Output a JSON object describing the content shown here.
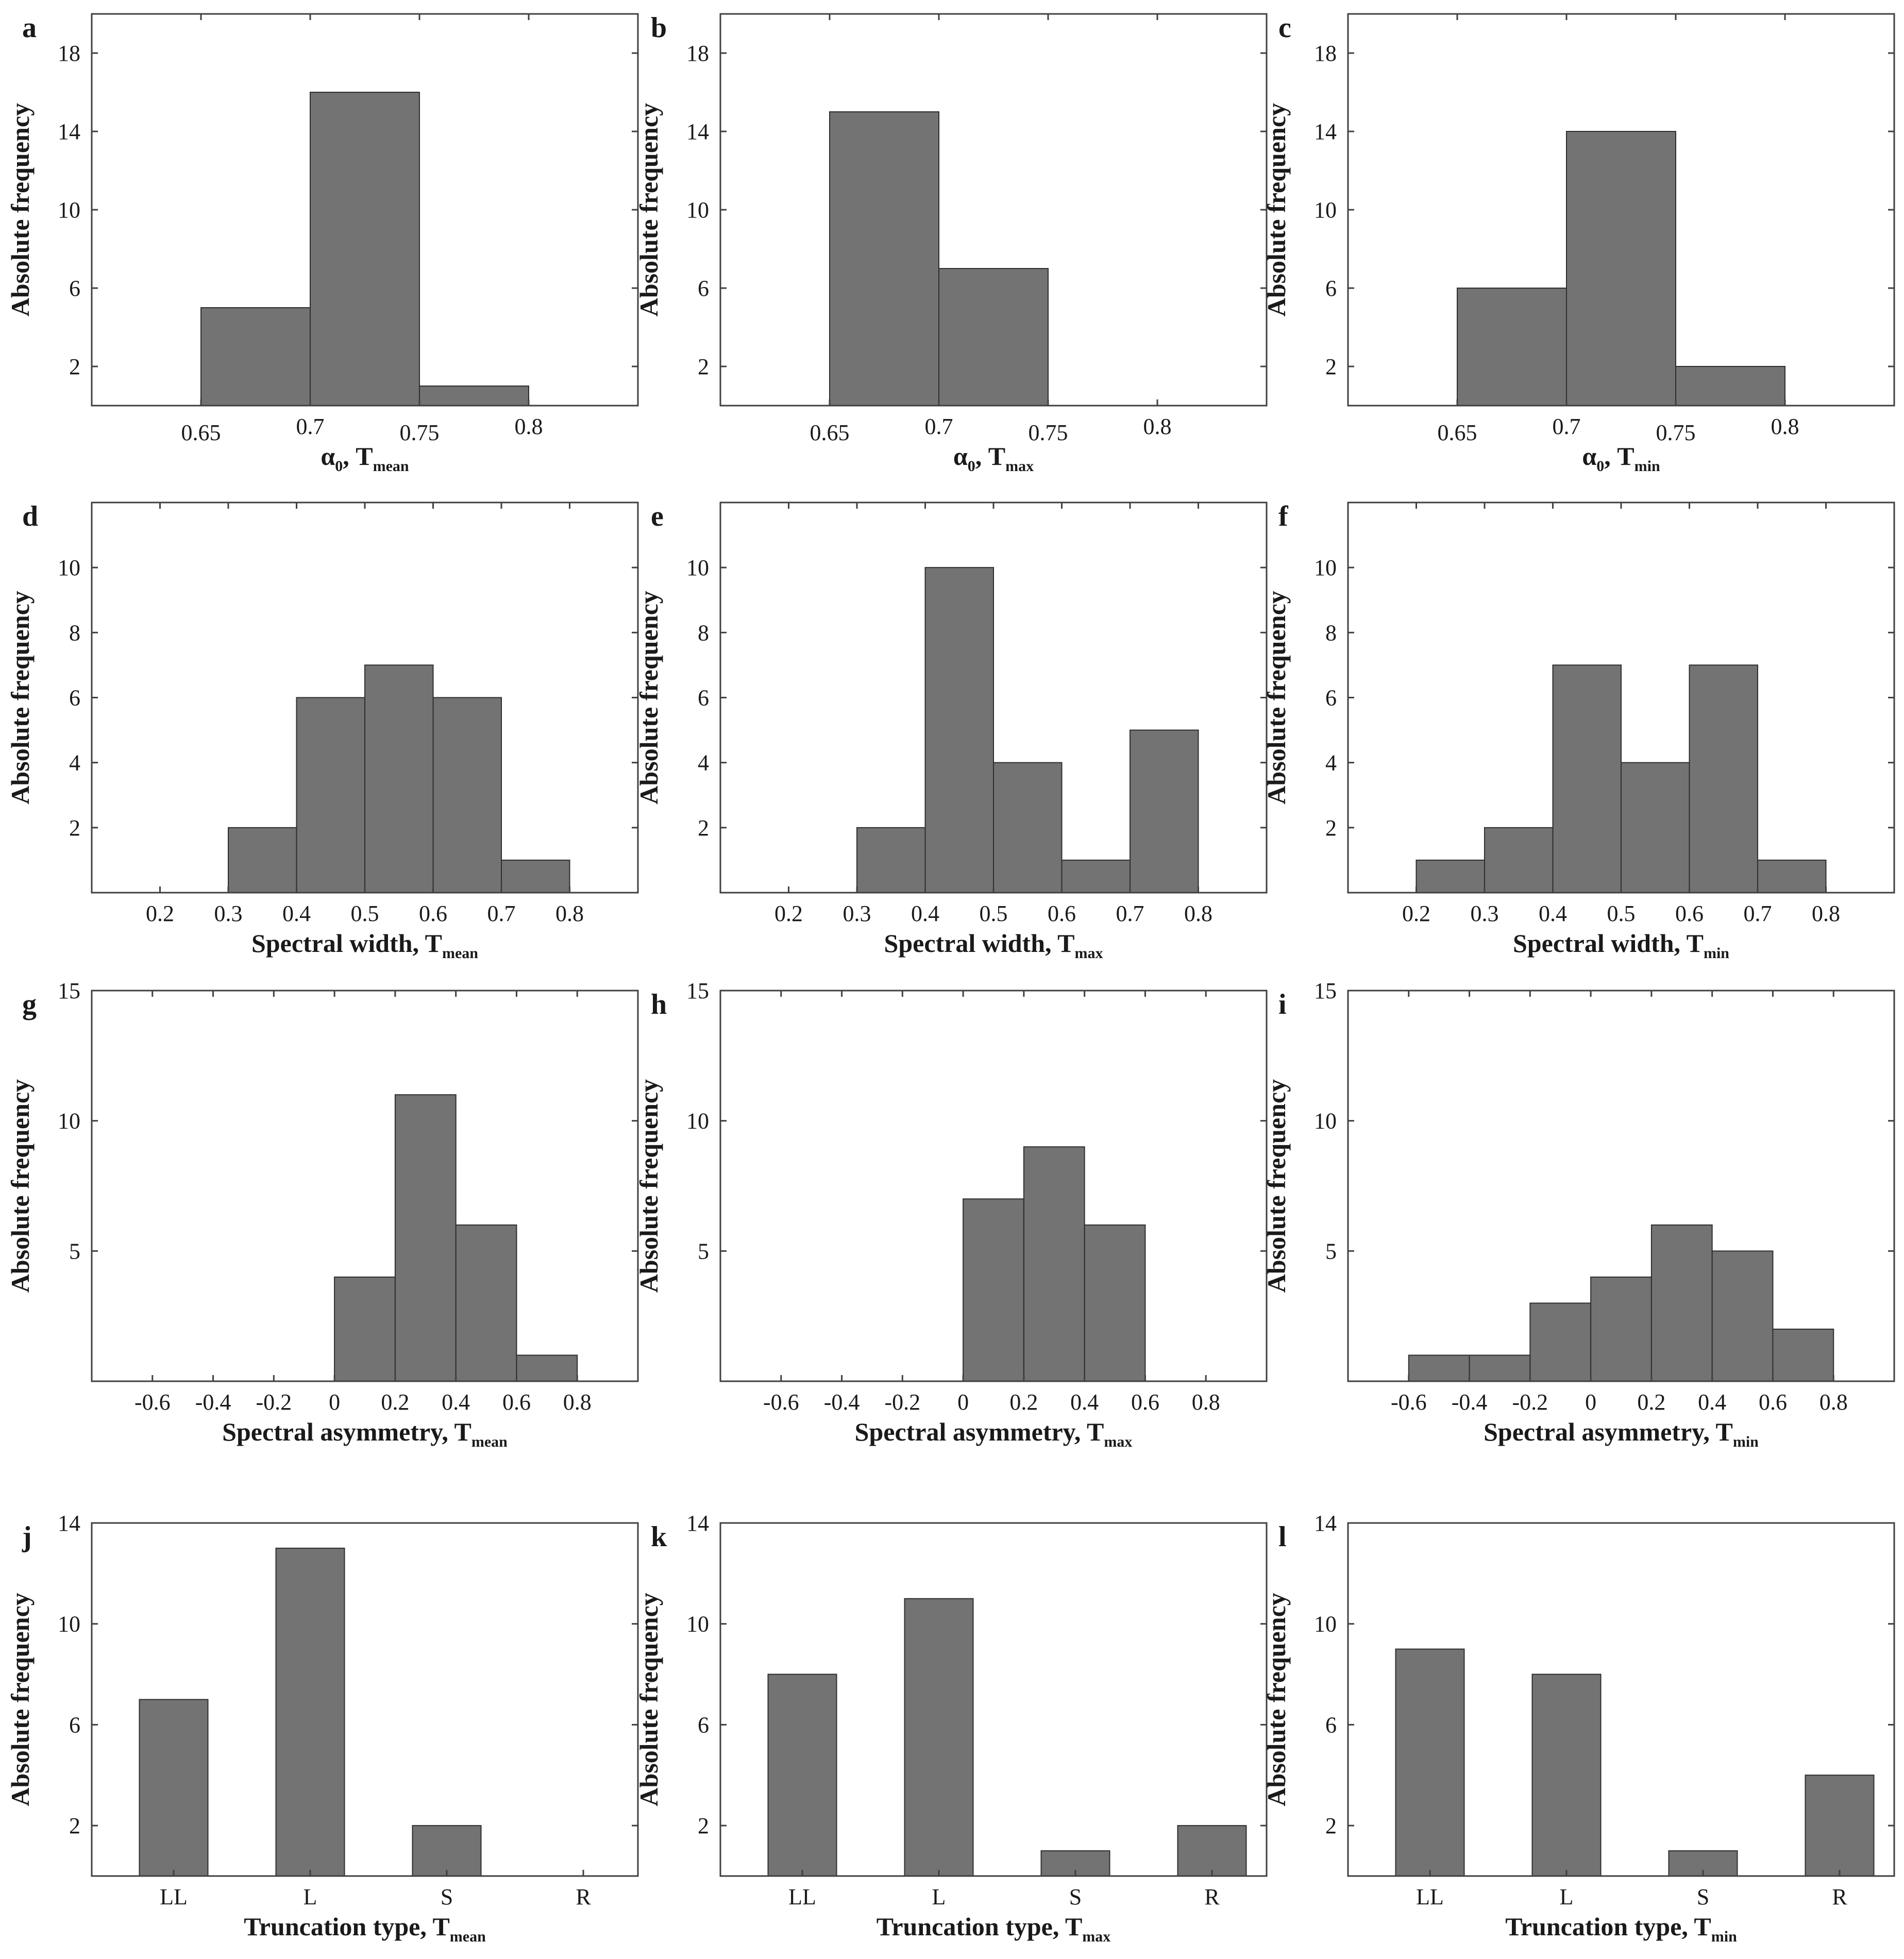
{
  "colors": {
    "bar": "#737373",
    "axis": "#404040",
    "text": "#1a1a1a",
    "background": "#ffffff"
  },
  "chart_data": [
    {
      "id": "a",
      "type": "bar",
      "kind": "hist",
      "bins": [
        [
          0.65,
          0.7
        ],
        [
          0.7,
          0.75
        ],
        [
          0.75,
          0.8
        ]
      ],
      "values": [
        5,
        16,
        1
      ],
      "xlim": [
        0.6,
        0.85
      ],
      "ylim": [
        0,
        20
      ],
      "xticks": [
        {
          "v": 0.65,
          "label": "0.65",
          "offset": 1
        },
        {
          "v": 0.7,
          "label": "0.7",
          "offset": 0
        },
        {
          "v": 0.75,
          "label": "0.75",
          "offset": 1
        },
        {
          "v": 0.8,
          "label": "0.8",
          "offset": 0
        }
      ],
      "yticks": [
        {
          "v": 2,
          "label": "2"
        },
        {
          "v": 6,
          "label": "6"
        },
        {
          "v": 10,
          "label": "10"
        },
        {
          "v": 14,
          "label": "14"
        },
        {
          "v": 18,
          "label": "18"
        }
      ],
      "ylabel": "Absolute frequency",
      "xlabel_main": "α",
      "xlabel_main_sub": "0",
      "xlabel_rest": ", T",
      "xlabel_sub": "mean"
    },
    {
      "id": "b",
      "type": "bar",
      "kind": "hist",
      "bins": [
        [
          0.65,
          0.7
        ],
        [
          0.7,
          0.75
        ]
      ],
      "values": [
        15,
        7
      ],
      "xlim": [
        0.6,
        0.85
      ],
      "ylim": [
        0,
        20
      ],
      "xticks": [
        {
          "v": 0.65,
          "label": "0.65",
          "offset": 1
        },
        {
          "v": 0.7,
          "label": "0.7",
          "offset": 0
        },
        {
          "v": 0.75,
          "label": "0.75",
          "offset": 1
        },
        {
          "v": 0.8,
          "label": "0.8",
          "offset": 0
        }
      ],
      "yticks": [
        {
          "v": 2,
          "label": "2"
        },
        {
          "v": 6,
          "label": "6"
        },
        {
          "v": 10,
          "label": "10"
        },
        {
          "v": 14,
          "label": "14"
        },
        {
          "v": 18,
          "label": "18"
        }
      ],
      "ylabel": "Absolute frequency",
      "xlabel_main": "α",
      "xlabel_main_sub": "0",
      "xlabel_rest": ", T",
      "xlabel_sub": "max"
    },
    {
      "id": "c",
      "type": "bar",
      "kind": "hist",
      "bins": [
        [
          0.65,
          0.7
        ],
        [
          0.7,
          0.75
        ],
        [
          0.75,
          0.8
        ]
      ],
      "values": [
        6,
        14,
        2
      ],
      "xlim": [
        0.6,
        0.85
      ],
      "ylim": [
        0,
        20
      ],
      "xticks": [
        {
          "v": 0.65,
          "label": "0.65",
          "offset": 1
        },
        {
          "v": 0.7,
          "label": "0.7",
          "offset": 0
        },
        {
          "v": 0.75,
          "label": "0.75",
          "offset": 1
        },
        {
          "v": 0.8,
          "label": "0.8",
          "offset": 0
        }
      ],
      "yticks": [
        {
          "v": 2,
          "label": "2"
        },
        {
          "v": 6,
          "label": "6"
        },
        {
          "v": 10,
          "label": "10"
        },
        {
          "v": 14,
          "label": "14"
        },
        {
          "v": 18,
          "label": "18"
        }
      ],
      "ylabel": "Absolute frequency",
      "xlabel_main": "α",
      "xlabel_main_sub": "0",
      "xlabel_rest": ", T",
      "xlabel_sub": "min"
    },
    {
      "id": "d",
      "type": "bar",
      "kind": "hist",
      "bins": [
        [
          0.3,
          0.4
        ],
        [
          0.4,
          0.5
        ],
        [
          0.5,
          0.6
        ],
        [
          0.6,
          0.7
        ],
        [
          0.7,
          0.8
        ]
      ],
      "values": [
        2,
        6,
        7,
        6,
        1
      ],
      "xlim": [
        0.1,
        0.9
      ],
      "ylim": [
        0,
        12
      ],
      "xticks": [
        {
          "v": 0.2,
          "label": "0.2"
        },
        {
          "v": 0.3,
          "label": "0.3"
        },
        {
          "v": 0.4,
          "label": "0.4"
        },
        {
          "v": 0.5,
          "label": "0.5"
        },
        {
          "v": 0.6,
          "label": "0.6"
        },
        {
          "v": 0.7,
          "label": "0.7"
        },
        {
          "v": 0.8,
          "label": "0.8"
        }
      ],
      "yticks": [
        {
          "v": 2,
          "label": "2"
        },
        {
          "v": 4,
          "label": "4"
        },
        {
          "v": 6,
          "label": "6"
        },
        {
          "v": 8,
          "label": "8"
        },
        {
          "v": 10,
          "label": "10"
        }
      ],
      "ylabel": "Absolute frequency",
      "xlabel_main": "Spectral width, T",
      "xlabel_sub": "mean"
    },
    {
      "id": "e",
      "type": "bar",
      "kind": "hist",
      "bins": [
        [
          0.3,
          0.4
        ],
        [
          0.4,
          0.5
        ],
        [
          0.5,
          0.6
        ],
        [
          0.6,
          0.7
        ],
        [
          0.7,
          0.8
        ]
      ],
      "values": [
        2,
        10,
        4,
        1,
        5
      ],
      "xlim": [
        0.1,
        0.9
      ],
      "ylim": [
        0,
        12
      ],
      "xticks": [
        {
          "v": 0.2,
          "label": "0.2"
        },
        {
          "v": 0.3,
          "label": "0.3"
        },
        {
          "v": 0.4,
          "label": "0.4"
        },
        {
          "v": 0.5,
          "label": "0.5"
        },
        {
          "v": 0.6,
          "label": "0.6"
        },
        {
          "v": 0.7,
          "label": "0.7"
        },
        {
          "v": 0.8,
          "label": "0.8"
        }
      ],
      "yticks": [
        {
          "v": 2,
          "label": "2"
        },
        {
          "v": 4,
          "label": "4"
        },
        {
          "v": 6,
          "label": "6"
        },
        {
          "v": 8,
          "label": "8"
        },
        {
          "v": 10,
          "label": "10"
        }
      ],
      "ylabel": "Absolute frequency",
      "xlabel_main": "Spectral width, T",
      "xlabel_sub": "max"
    },
    {
      "id": "f",
      "type": "bar",
      "kind": "hist",
      "bins": [
        [
          0.2,
          0.3
        ],
        [
          0.3,
          0.4
        ],
        [
          0.4,
          0.5
        ],
        [
          0.5,
          0.6
        ],
        [
          0.6,
          0.7
        ],
        [
          0.7,
          0.8
        ]
      ],
      "values": [
        1,
        2,
        7,
        4,
        7,
        1
      ],
      "xlim": [
        0.1,
        0.9
      ],
      "ylim": [
        0,
        12
      ],
      "xticks": [
        {
          "v": 0.2,
          "label": "0.2"
        },
        {
          "v": 0.3,
          "label": "0.3"
        },
        {
          "v": 0.4,
          "label": "0.4"
        },
        {
          "v": 0.5,
          "label": "0.5"
        },
        {
          "v": 0.6,
          "label": "0.6"
        },
        {
          "v": 0.7,
          "label": "0.7"
        },
        {
          "v": 0.8,
          "label": "0.8"
        }
      ],
      "yticks": [
        {
          "v": 2,
          "label": "2"
        },
        {
          "v": 4,
          "label": "4"
        },
        {
          "v": 6,
          "label": "6"
        },
        {
          "v": 8,
          "label": "8"
        },
        {
          "v": 10,
          "label": "10"
        }
      ],
      "ylabel": "Absolute frequency",
      "xlabel_main": "Spectral width, T",
      "xlabel_sub": "min"
    },
    {
      "id": "g",
      "type": "bar",
      "kind": "hist",
      "bins": [
        [
          0,
          0.2
        ],
        [
          0.2,
          0.4
        ],
        [
          0.4,
          0.6
        ],
        [
          0.6,
          0.8
        ]
      ],
      "values": [
        4,
        11,
        6,
        1
      ],
      "xlim": [
        -0.8,
        1.0
      ],
      "ylim": [
        0,
        15
      ],
      "xticks": [
        {
          "v": -0.6,
          "label": "-0.6"
        },
        {
          "v": -0.4,
          "label": "-0.4"
        },
        {
          "v": -0.2,
          "label": "-0.2"
        },
        {
          "v": 0,
          "label": "0"
        },
        {
          "v": 0.2,
          "label": "0.2"
        },
        {
          "v": 0.4,
          "label": "0.4"
        },
        {
          "v": 0.6,
          "label": "0.6"
        },
        {
          "v": 0.8,
          "label": "0.8"
        }
      ],
      "yticks": [
        {
          "v": 5,
          "label": "5"
        },
        {
          "v": 10,
          "label": "10"
        },
        {
          "v": 15,
          "label": "15"
        }
      ],
      "ylabel": "Absolute frequency",
      "xlabel_main": "Spectral asymmetry, T",
      "xlabel_sub": "mean"
    },
    {
      "id": "h",
      "type": "bar",
      "kind": "hist",
      "bins": [
        [
          0,
          0.2
        ],
        [
          0.2,
          0.4
        ],
        [
          0.4,
          0.6
        ]
      ],
      "values": [
        7,
        9,
        6
      ],
      "xlim": [
        -0.8,
        1.0
      ],
      "ylim": [
        0,
        15
      ],
      "xticks": [
        {
          "v": -0.6,
          "label": "-0.6"
        },
        {
          "v": -0.4,
          "label": "-0.4"
        },
        {
          "v": -0.2,
          "label": "-0.2"
        },
        {
          "v": 0,
          "label": "0"
        },
        {
          "v": 0.2,
          "label": "0.2"
        },
        {
          "v": 0.4,
          "label": "0.4"
        },
        {
          "v": 0.6,
          "label": "0.6"
        },
        {
          "v": 0.8,
          "label": "0.8"
        }
      ],
      "yticks": [
        {
          "v": 5,
          "label": "5"
        },
        {
          "v": 10,
          "label": "10"
        },
        {
          "v": 15,
          "label": "15"
        }
      ],
      "ylabel": "Absolute frequency",
      "xlabel_main": "Spectral asymmetry, T",
      "xlabel_sub": "max"
    },
    {
      "id": "i",
      "type": "bar",
      "kind": "hist",
      "bins": [
        [
          -0.6,
          -0.4
        ],
        [
          -0.4,
          -0.2
        ],
        [
          -0.2,
          0
        ],
        [
          0,
          0.2
        ],
        [
          0.2,
          0.4
        ],
        [
          0.4,
          0.6
        ],
        [
          0.6,
          0.8
        ]
      ],
      "values": [
        1,
        1,
        3,
        4,
        6,
        5,
        2
      ],
      "xlim": [
        -0.8,
        1.0
      ],
      "ylim": [
        0,
        15
      ],
      "xticks": [
        {
          "v": -0.6,
          "label": "-0.6"
        },
        {
          "v": -0.4,
          "label": "-0.4"
        },
        {
          "v": -0.2,
          "label": "-0.2"
        },
        {
          "v": 0,
          "label": "0"
        },
        {
          "v": 0.2,
          "label": "0.2"
        },
        {
          "v": 0.4,
          "label": "0.4"
        },
        {
          "v": 0.6,
          "label": "0.6"
        },
        {
          "v": 0.8,
          "label": "0.8"
        }
      ],
      "yticks": [
        {
          "v": 5,
          "label": "5"
        },
        {
          "v": 10,
          "label": "10"
        },
        {
          "v": 15,
          "label": "15"
        }
      ],
      "ylabel": "Absolute frequency",
      "xlabel_main": "Spectral asymmetry, T",
      "xlabel_sub": "min"
    },
    {
      "id": "j",
      "type": "bar",
      "kind": "cat",
      "categories": [
        "LL",
        "L",
        "S",
        "R"
      ],
      "values": [
        7,
        13,
        2,
        0
      ],
      "xlim": [
        0.4,
        4.4
      ],
      "ylim": [
        0,
        14
      ],
      "yticks": [
        {
          "v": 2,
          "label": "2"
        },
        {
          "v": 6,
          "label": "6"
        },
        {
          "v": 10,
          "label": "10"
        },
        {
          "v": 14,
          "label": "14"
        }
      ],
      "ylabel": "Absolute frequency",
      "xlabel_main": "Truncation type, T",
      "xlabel_sub": "mean"
    },
    {
      "id": "k",
      "type": "bar",
      "kind": "cat",
      "categories": [
        "LL",
        "L",
        "S",
        "R"
      ],
      "values": [
        8,
        11,
        1,
        2
      ],
      "xlim": [
        0.4,
        4.4
      ],
      "ylim": [
        0,
        14
      ],
      "yticks": [
        {
          "v": 2,
          "label": "2"
        },
        {
          "v": 6,
          "label": "6"
        },
        {
          "v": 10,
          "label": "10"
        },
        {
          "v": 14,
          "label": "14"
        }
      ],
      "ylabel": "Absolute frequency",
      "xlabel_main": "Truncation type, T",
      "xlabel_sub": "max"
    },
    {
      "id": "l",
      "type": "bar",
      "kind": "cat",
      "categories": [
        "LL",
        "L",
        "S",
        "R"
      ],
      "values": [
        9,
        8,
        1,
        4
      ],
      "xlim": [
        0.4,
        4.4
      ],
      "ylim": [
        0,
        14
      ],
      "yticks": [
        {
          "v": 2,
          "label": "2"
        },
        {
          "v": 6,
          "label": "6"
        },
        {
          "v": 10,
          "label": "10"
        },
        {
          "v": 14,
          "label": "14"
        }
      ],
      "ylabel": "Absolute frequency",
      "xlabel_main": "Truncation type, T",
      "xlabel_sub": "min"
    }
  ]
}
